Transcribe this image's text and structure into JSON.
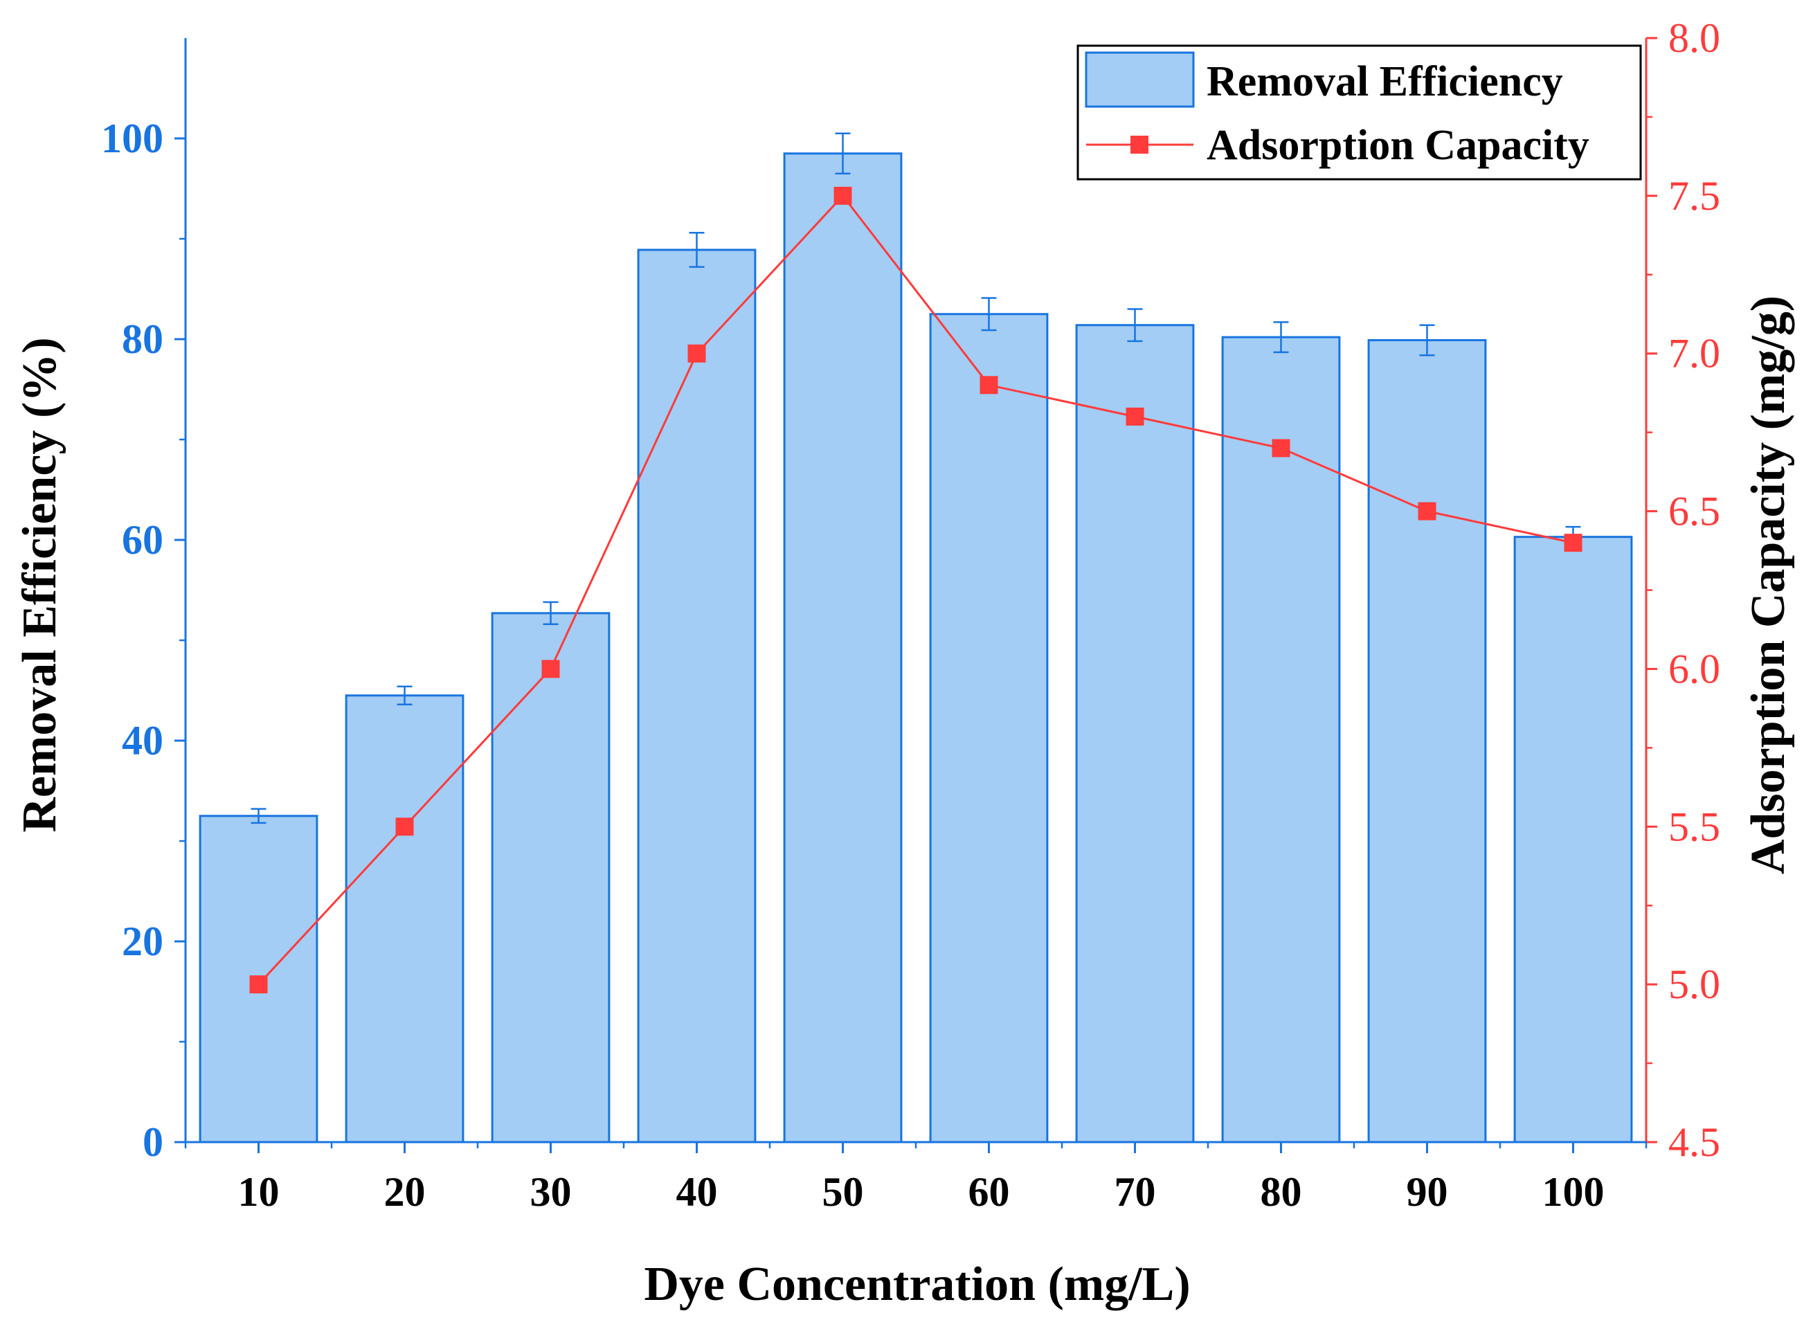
{
  "chart_data": {
    "type": "bar+line",
    "xlabel": "Dye Concentration (mg/L)",
    "categories": [
      "10",
      "20",
      "30",
      "40",
      "50",
      "60",
      "70",
      "80",
      "90",
      "100"
    ],
    "left_axis": {
      "label": "Removal Efficiency (%)",
      "ylim": [
        0,
        110
      ],
      "ticks": [
        0,
        20,
        40,
        60,
        80,
        100
      ],
      "tick_labels": [
        "0",
        "20",
        "40",
        "60",
        "80",
        "100"
      ],
      "color": "#1874e0"
    },
    "right_axis": {
      "label": "Adsorption Capacity (mg/g)",
      "ylim": [
        4.5,
        8.0
      ],
      "ticks": [
        4.5,
        5.0,
        5.5,
        6.0,
        6.5,
        7.0,
        7.5,
        8.0
      ],
      "tick_labels": [
        "4.5",
        "5.0",
        "5.5",
        "6.0",
        "6.5",
        "7.0",
        "7.5",
        "8.0"
      ],
      "color": "#ff3b3b"
    },
    "series": [
      {
        "name": "Removal Efficiency",
        "type": "bar",
        "axis": "left",
        "values": [
          32.5,
          44.5,
          52.7,
          88.9,
          98.5,
          82.5,
          81.4,
          80.2,
          79.9,
          60.3
        ],
        "errors": [
          0.7,
          0.9,
          1.1,
          1.7,
          2.0,
          1.6,
          1.6,
          1.5,
          1.5,
          1.0
        ],
        "fill_color": "#a3cdf4",
        "edge_color": "#1874e0"
      },
      {
        "name": "Adsorption Capacity",
        "type": "line",
        "axis": "right",
        "values": [
          5.0,
          5.5,
          6.0,
          7.0,
          7.5,
          6.9,
          6.8,
          6.7,
          6.5,
          6.4
        ],
        "color": "#ff3b3b",
        "marker": "square"
      }
    ],
    "legend": {
      "position": "top-right",
      "entries": [
        "Removal Efficiency",
        "Adsorption Capacity"
      ]
    }
  }
}
